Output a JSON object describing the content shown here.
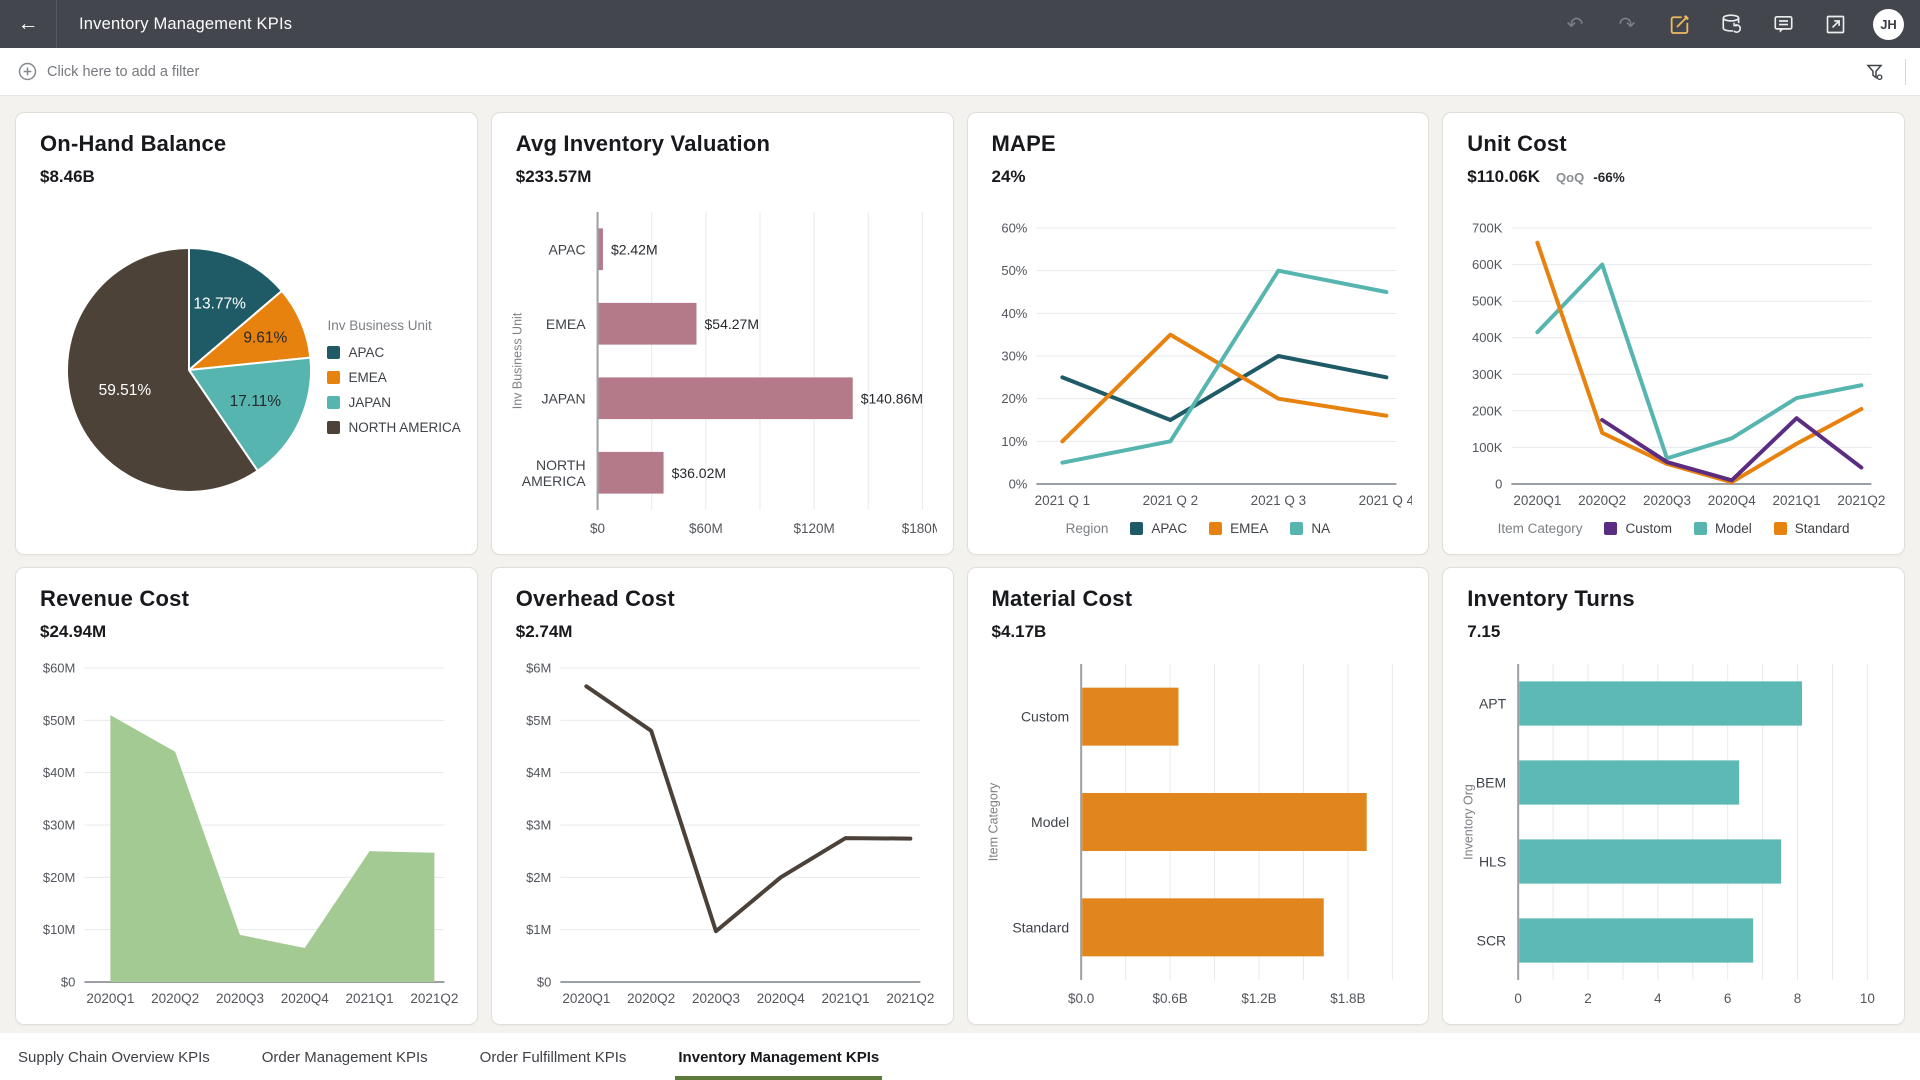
{
  "header": {
    "title": "Inventory Management KPIs",
    "back_icon": "←",
    "undo_icon": "↶",
    "redo_icon": "↷",
    "avatar_initials": "JH",
    "accent_edit_color": "#efba5d",
    "bar_color": "#43474d"
  },
  "filter_bar": {
    "add_filter_label": "Click here to add a filter"
  },
  "cards": [
    {
      "title": "On-Hand Balance",
      "value": "$8.46B"
    },
    {
      "title": "Avg Inventory Valuation",
      "value": "$233.57M"
    },
    {
      "title": "MAPE",
      "value": "24%"
    },
    {
      "title": "Unit Cost",
      "value": "$110.06K",
      "qoq_label": "QoQ",
      "qoq_value": "-66%"
    },
    {
      "title": "Revenue Cost",
      "value": "$24.94M"
    },
    {
      "title": "Overhead Cost",
      "value": "$2.74M"
    },
    {
      "title": "Material Cost",
      "value": "$4.17B"
    },
    {
      "title": "Inventory Turns",
      "value": "7.15"
    }
  ],
  "chart_data": [
    {
      "type": "pie",
      "title": "On-Hand Balance",
      "categories": [
        "APAC",
        "EMEA",
        "JAPAN",
        "NORTH AMERICA"
      ],
      "values": [
        13.77,
        9.61,
        17.11,
        59.51
      ],
      "slice_labels": [
        "13.77%",
        "9.61%",
        "17.11%",
        "59.51%"
      ],
      "colors": [
        "#1e5b66",
        "#e8820e",
        "#56b5af",
        "#4d4238"
      ],
      "label_colors": [
        "#ffffff",
        "#26292d",
        "#26292d",
        "#ffffff"
      ],
      "legend_title": "Inv Business Unit",
      "legend_position": "right"
    },
    {
      "type": "bar",
      "title": "Avg Inventory Valuation",
      "orientation": "horizontal",
      "categories": [
        "APAC",
        "EMEA",
        "JAPAN",
        "NORTH AMERICA"
      ],
      "values": [
        2.42,
        54.27,
        140.86,
        36.02
      ],
      "value_labels": [
        "$2.42M",
        "$54.27M",
        "$140.86M",
        "$36.02M"
      ],
      "bar_color": "#b57a8a",
      "xlim": [
        0,
        180
      ],
      "grid_step": 30,
      "ticks": [
        0,
        60,
        120,
        180
      ],
      "tick_labels": [
        "$0",
        "$60M",
        "$120M",
        "$180M"
      ],
      "ylabel": "Inv Business Unit"
    },
    {
      "type": "line",
      "title": "MAPE",
      "x": [
        "2021 Q 1",
        "2021 Q 2",
        "2021 Q 3",
        "2021 Q 4"
      ],
      "series": [
        {
          "name": "APAC",
          "color": "#1e5b66",
          "values": [
            25,
            15,
            30,
            25
          ]
        },
        {
          "name": "EMEA",
          "color": "#e8820e",
          "values": [
            10,
            35,
            20,
            16
          ]
        },
        {
          "name": "NA",
          "color": "#56b5af",
          "values": [
            5,
            10,
            50,
            45
          ]
        }
      ],
      "ylim": [
        0,
        60
      ],
      "ytick_step": 10,
      "ytick_labels": [
        "0%",
        "10%",
        "20%",
        "30%",
        "40%",
        "50%",
        "60%"
      ],
      "legend_title": "Region",
      "legend_position": "bottom",
      "grid": true
    },
    {
      "type": "line",
      "title": "Unit Cost",
      "x": [
        "2020Q1",
        "2020Q2",
        "2020Q3",
        "2020Q4",
        "2021Q1",
        "2021Q2"
      ],
      "series": [
        {
          "name": "Custom",
          "color": "#5b2d82",
          "values": [
            null,
            175,
            60,
            10,
            180,
            45
          ]
        },
        {
          "name": "Model",
          "color": "#56b5af",
          "values": [
            415,
            600,
            70,
            125,
            235,
            270
          ]
        },
        {
          "name": "Standard",
          "color": "#e8820e",
          "values": [
            660,
            140,
            55,
            5,
            110,
            205
          ]
        }
      ],
      "draw_order": [
        1,
        2,
        0
      ],
      "ylim": [
        0,
        700
      ],
      "ytick_step": 100,
      "ytick_labels": [
        "0",
        "100K",
        "200K",
        "300K",
        "400K",
        "500K",
        "600K",
        "700K"
      ],
      "legend_title": "Item Category",
      "legend_position": "bottom",
      "grid": true
    },
    {
      "type": "area",
      "title": "Revenue Cost",
      "x": [
        "2020Q1",
        "2020Q2",
        "2020Q3",
        "2020Q4",
        "2021Q1",
        "2021Q2"
      ],
      "series": [
        {
          "name": "Revenue Cost",
          "color": "#a3ca92",
          "values": [
            51,
            44,
            9,
            6.5,
            25,
            24.7
          ]
        }
      ],
      "ylim": [
        0,
        60
      ],
      "ytick_step": 10,
      "ytick_labels": [
        "$0",
        "$10M",
        "$20M",
        "$30M",
        "$40M",
        "$50M",
        "$60M"
      ],
      "grid": true
    },
    {
      "type": "line",
      "title": "Overhead Cost",
      "x": [
        "2020Q1",
        "2020Q2",
        "2020Q3",
        "2020Q4",
        "2021Q1",
        "2021Q2"
      ],
      "series": [
        {
          "name": "Overhead Cost",
          "color": "#4c4138",
          "values": [
            5.65,
            4.8,
            0.97,
            2.0,
            2.75,
            2.74
          ]
        }
      ],
      "ylim": [
        0,
        6
      ],
      "ytick_step": 1,
      "ytick_labels": [
        "$0",
        "$1M",
        "$2M",
        "$3M",
        "$4M",
        "$5M",
        "$6M"
      ],
      "grid": true
    },
    {
      "type": "bar",
      "title": "Material Cost",
      "orientation": "horizontal",
      "categories": [
        "Custom",
        "Model",
        "Standard"
      ],
      "values": [
        0.65,
        1.92,
        1.63
      ],
      "bar_color": "#e0861c",
      "xlim": [
        0,
        2.1
      ],
      "grid_step": 0.3,
      "ticks": [
        0,
        0.6,
        1.2,
        1.8
      ],
      "tick_labels": [
        "$0.0",
        "$0.6B",
        "$1.2B",
        "$1.8B"
      ],
      "ylabel": "Item Category"
    },
    {
      "type": "bar",
      "title": "Inventory Turns",
      "orientation": "horizontal",
      "categories": [
        "APT",
        "BEM",
        "HLS",
        "SCR"
      ],
      "values": [
        8.1,
        6.3,
        7.5,
        6.7
      ],
      "bar_color": "#5cb9b3",
      "xlim": [
        0,
        10
      ],
      "grid_step": 1,
      "ticks": [
        0,
        2,
        4,
        6,
        8,
        10
      ],
      "tick_labels": [
        "0",
        "2",
        "4",
        "6",
        "8",
        "10"
      ],
      "ylabel": "Inventory Org"
    }
  ],
  "tabs": {
    "active_color": "#5c7b3b",
    "items": [
      {
        "label": "Supply Chain Overview KPIs",
        "active": false
      },
      {
        "label": "Order Management KPIs",
        "active": false
      },
      {
        "label": "Order Fulfillment KPIs",
        "active": false
      },
      {
        "label": "Inventory Management KPIs",
        "active": true
      }
    ]
  }
}
